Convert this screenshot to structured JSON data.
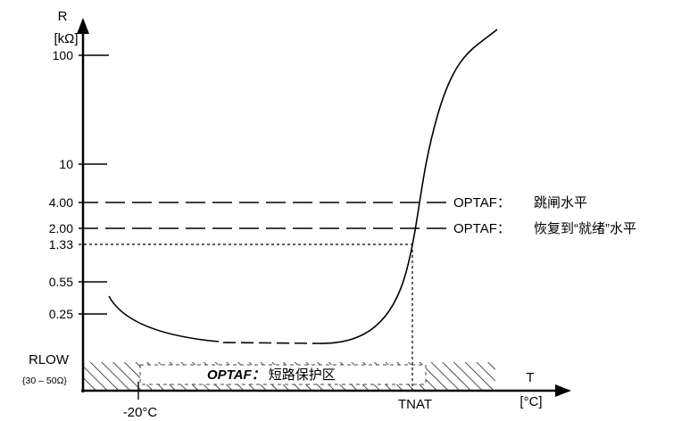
{
  "chart_data": {
    "type": "line",
    "y_axis": {
      "label": "R",
      "unit": "[kΩ]",
      "ticks": [
        "100",
        "10",
        "4.00",
        "2.00",
        "1.33",
        "0.55",
        "0.25",
        "RLOW"
      ],
      "rlow_range": "{30 – 50Ω}"
    },
    "x_axis": {
      "label": "T",
      "unit": "[°C]",
      "ticks": [
        "-20°C",
        "TNAT"
      ]
    },
    "levels": [
      {
        "prefix": "OPTAF：",
        "text": "跳闸水平"
      },
      {
        "prefix": "OPTAF：",
        "text": "恢复到“就绪”水平"
      }
    ],
    "zone": {
      "prefix": "OPTAF：",
      "text": "短路保护区"
    }
  }
}
